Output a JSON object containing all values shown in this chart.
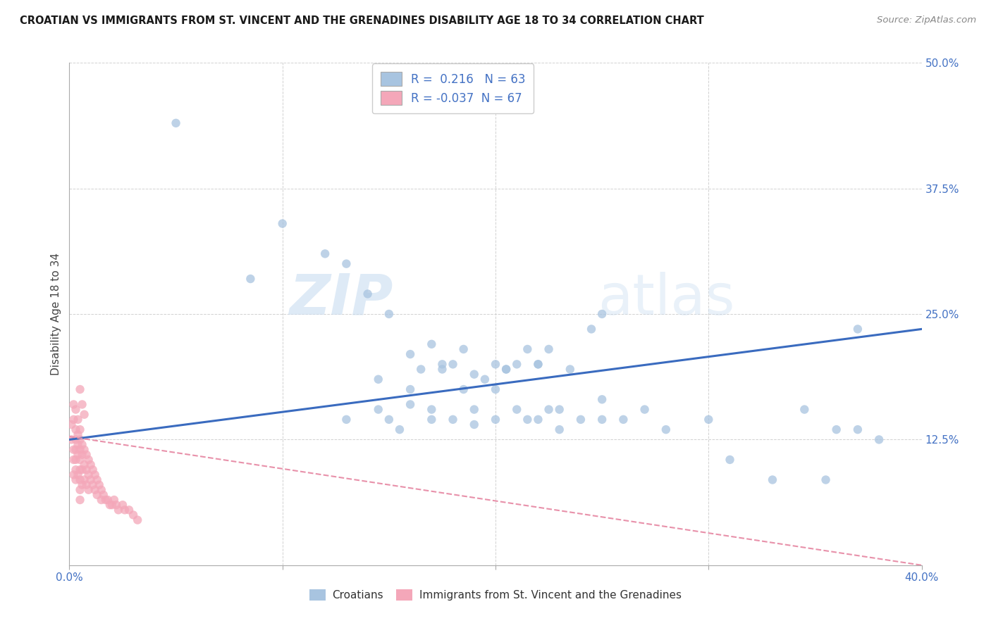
{
  "title": "CROATIAN VS IMMIGRANTS FROM ST. VINCENT AND THE GRENADINES DISABILITY AGE 18 TO 34 CORRELATION CHART",
  "source": "Source: ZipAtlas.com",
  "ylabel": "Disability Age 18 to 34",
  "xlim": [
    0.0,
    0.4
  ],
  "ylim": [
    0.0,
    0.5
  ],
  "xticks": [
    0.0,
    0.1,
    0.2,
    0.3,
    0.4
  ],
  "yticks": [
    0.0,
    0.125,
    0.25,
    0.375,
    0.5
  ],
  "blue_R": 0.216,
  "blue_N": 63,
  "pink_R": -0.037,
  "pink_N": 67,
  "blue_color": "#a8c4e0",
  "pink_color": "#f4a7b9",
  "blue_line_color": "#3a6bbf",
  "pink_line_color": "#e891aa",
  "watermark_zip": "ZIP",
  "watermark_atlas": "atlas",
  "blue_scatter_x": [
    0.085,
    0.13,
    0.145,
    0.145,
    0.15,
    0.155,
    0.16,
    0.16,
    0.165,
    0.17,
    0.17,
    0.175,
    0.175,
    0.18,
    0.185,
    0.185,
    0.19,
    0.19,
    0.195,
    0.2,
    0.2,
    0.205,
    0.205,
    0.21,
    0.215,
    0.215,
    0.22,
    0.22,
    0.225,
    0.225,
    0.23,
    0.23,
    0.235,
    0.24,
    0.245,
    0.25,
    0.25,
    0.26,
    0.27,
    0.28,
    0.3,
    0.31,
    0.33,
    0.345,
    0.355,
    0.36,
    0.37,
    0.37,
    0.38,
    0.05,
    0.1,
    0.12,
    0.13,
    0.14,
    0.15,
    0.16,
    0.17,
    0.18,
    0.19,
    0.2,
    0.21,
    0.22,
    0.25
  ],
  "blue_scatter_y": [
    0.285,
    0.145,
    0.185,
    0.155,
    0.145,
    0.135,
    0.175,
    0.16,
    0.195,
    0.155,
    0.145,
    0.2,
    0.195,
    0.145,
    0.175,
    0.215,
    0.155,
    0.14,
    0.185,
    0.175,
    0.145,
    0.195,
    0.195,
    0.155,
    0.215,
    0.145,
    0.145,
    0.2,
    0.155,
    0.215,
    0.135,
    0.155,
    0.195,
    0.145,
    0.235,
    0.145,
    0.165,
    0.145,
    0.155,
    0.135,
    0.145,
    0.105,
    0.085,
    0.155,
    0.085,
    0.135,
    0.135,
    0.235,
    0.125,
    0.44,
    0.34,
    0.31,
    0.3,
    0.27,
    0.25,
    0.21,
    0.22,
    0.2,
    0.19,
    0.2,
    0.2,
    0.2,
    0.25
  ],
  "pink_scatter_x": [
    0.002,
    0.002,
    0.002,
    0.003,
    0.003,
    0.003,
    0.003,
    0.003,
    0.003,
    0.004,
    0.004,
    0.004,
    0.004,
    0.005,
    0.005,
    0.005,
    0.005,
    0.005,
    0.005,
    0.005,
    0.005,
    0.006,
    0.006,
    0.006,
    0.006,
    0.007,
    0.007,
    0.007,
    0.008,
    0.008,
    0.008,
    0.009,
    0.009,
    0.009,
    0.01,
    0.01,
    0.011,
    0.011,
    0.012,
    0.012,
    0.013,
    0.013,
    0.014,
    0.015,
    0.015,
    0.016,
    0.017,
    0.018,
    0.019,
    0.02,
    0.021,
    0.022,
    0.023,
    0.025,
    0.026,
    0.028,
    0.03,
    0.032,
    0.001,
    0.001,
    0.002,
    0.002,
    0.003,
    0.004,
    0.005,
    0.006,
    0.007
  ],
  "pink_scatter_y": [
    0.115,
    0.105,
    0.09,
    0.135,
    0.125,
    0.115,
    0.105,
    0.095,
    0.085,
    0.13,
    0.12,
    0.11,
    0.09,
    0.135,
    0.125,
    0.115,
    0.105,
    0.095,
    0.085,
    0.075,
    0.065,
    0.12,
    0.11,
    0.095,
    0.08,
    0.115,
    0.1,
    0.085,
    0.11,
    0.095,
    0.08,
    0.105,
    0.09,
    0.075,
    0.1,
    0.085,
    0.095,
    0.08,
    0.09,
    0.075,
    0.085,
    0.07,
    0.08,
    0.075,
    0.065,
    0.07,
    0.065,
    0.065,
    0.06,
    0.06,
    0.065,
    0.06,
    0.055,
    0.06,
    0.055,
    0.055,
    0.05,
    0.045,
    0.14,
    0.125,
    0.16,
    0.145,
    0.155,
    0.145,
    0.175,
    0.16,
    0.15
  ],
  "blue_line_x0": 0.0,
  "blue_line_x1": 0.4,
  "blue_line_y0": 0.125,
  "blue_line_y1": 0.235,
  "pink_line_x0": 0.0,
  "pink_line_x1": 0.4,
  "pink_line_y0": 0.128,
  "pink_line_y1": 0.0
}
